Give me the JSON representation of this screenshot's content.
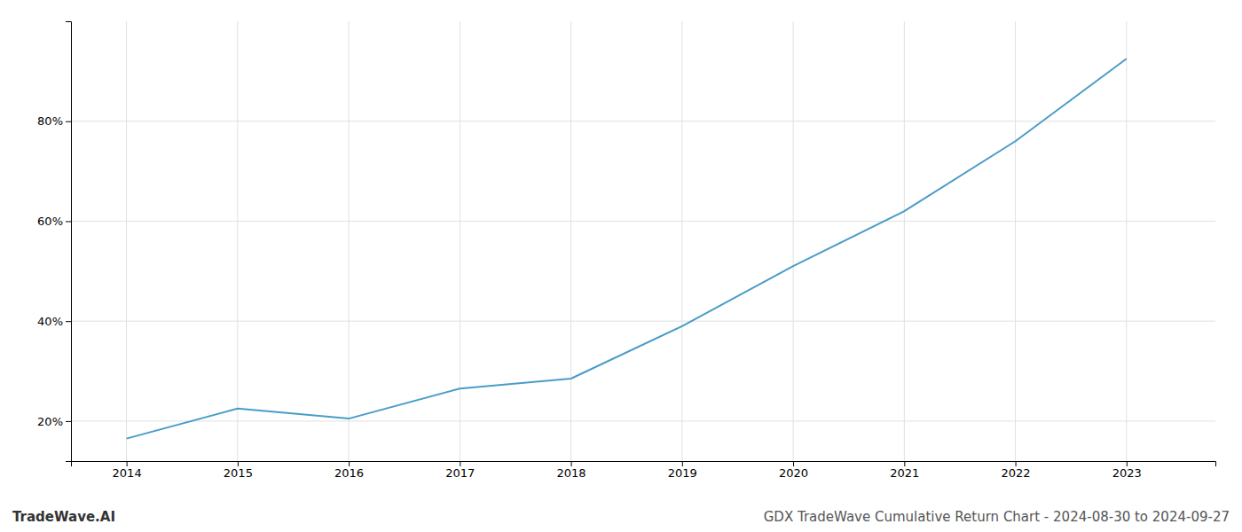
{
  "chart_data": {
    "type": "line",
    "title": "GDX TradeWave Cumulative Return Chart - 2024-08-30 to 2024-09-27",
    "annotations": [
      "TradeWave.AI"
    ],
    "x": [
      2014,
      2015,
      2016,
      2017,
      2018,
      2019,
      2020,
      2021,
      2022,
      2023
    ],
    "values": [
      16.5,
      22.5,
      20.5,
      26.5,
      28.5,
      39.0,
      51.0,
      62.0,
      76.0,
      92.5
    ],
    "color": "#4a9cc7",
    "xlim": [
      2013.5,
      2023.8
    ],
    "xticks": [
      2014,
      2015,
      2016,
      2017,
      2018,
      2019,
      2020,
      2021,
      2022,
      2023
    ],
    "ylim": [
      12,
      100
    ],
    "yticks": [
      {
        "value": 20,
        "label": "20%"
      },
      {
        "value": 40,
        "label": "40%"
      },
      {
        "value": 60,
        "label": "60%"
      },
      {
        "value": 80,
        "label": "80%"
      }
    ],
    "grid": true
  }
}
